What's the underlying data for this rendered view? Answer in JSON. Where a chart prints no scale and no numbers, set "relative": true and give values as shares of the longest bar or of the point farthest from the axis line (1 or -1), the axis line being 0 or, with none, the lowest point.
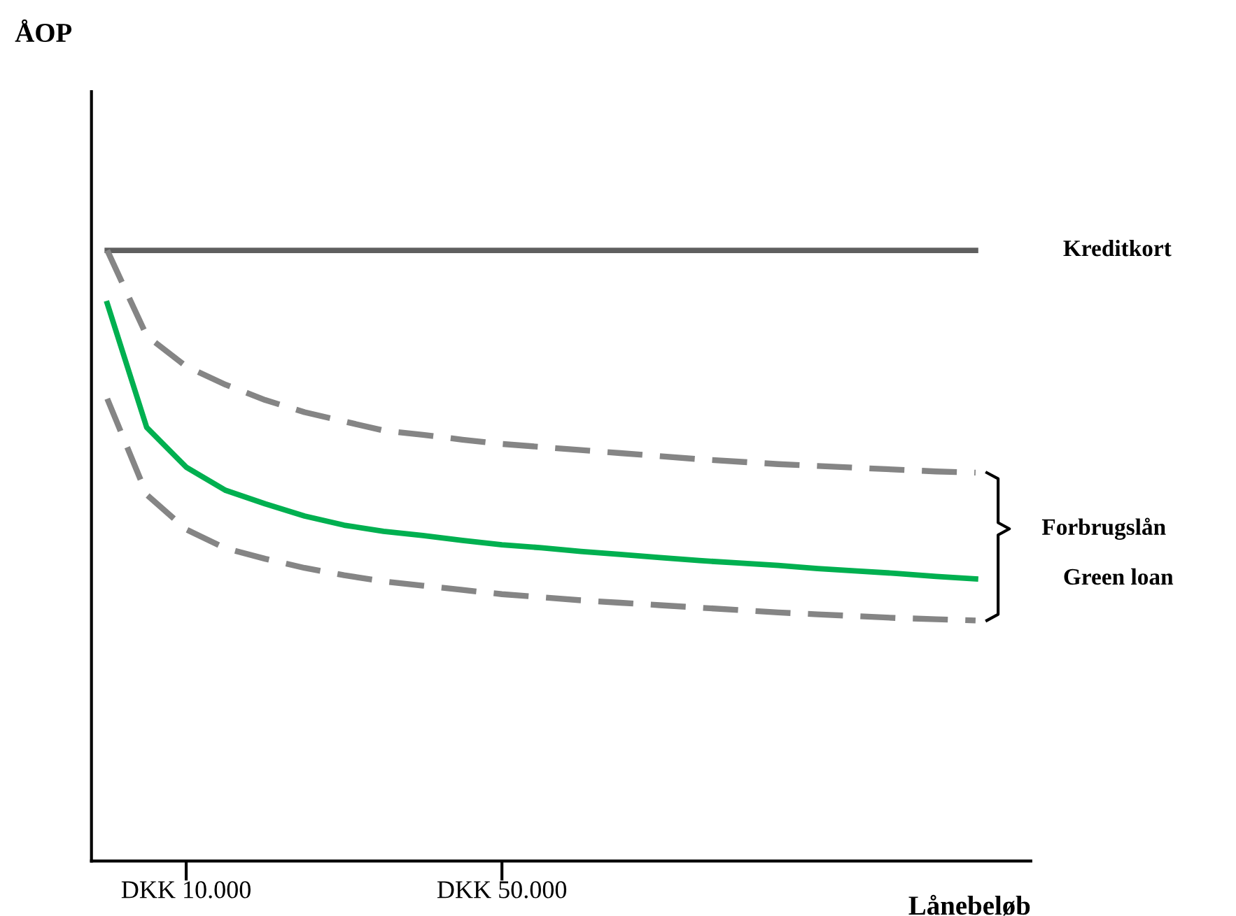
{
  "chart_data": {
    "type": "line",
    "relative": true,
    "xlabel": "Lånebeløb",
    "categories": [
      null,
      null,
      "DKK 10.000",
      null,
      null,
      null,
      null,
      null,
      null,
      null,
      "DKK 50.000",
      null,
      null,
      null,
      null,
      null,
      null,
      null,
      null,
      null,
      null,
      null,
      null
    ],
    "tick_labels": "x",
    "grid": false,
    "legend": false,
    "marker": "none",
    "series": [
      {
        "name": "Kreditkort",
        "color": "#5f5f5f",
        "line_style": "solid",
        "values": [
          1.0,
          1.0,
          1.0,
          1.0,
          1.0,
          1.0,
          1.0,
          1.0,
          1.0,
          1.0,
          1.0,
          1.0,
          1.0,
          1.0,
          1.0,
          1.0,
          1.0,
          1.0,
          1.0,
          1.0,
          1.0,
          1.0,
          1.0
        ]
      },
      {
        "color": "#858585",
        "line_style": "dashed",
        "values": [
          1.0,
          0.86,
          0.81,
          0.78,
          0.755,
          0.735,
          0.72,
          0.705,
          0.698,
          0.69,
          0.683,
          0.678,
          0.673,
          0.668,
          0.663,
          0.658,
          0.654,
          0.65,
          0.647,
          0.644,
          0.641,
          0.638,
          0.636
        ]
      },
      {
        "name": "Green loan",
        "color": "#00b050",
        "line_style": "solid",
        "values": [
          0.913,
          0.71,
          0.645,
          0.607,
          0.585,
          0.565,
          0.55,
          0.54,
          0.533,
          0.525,
          0.518,
          0.513,
          0.507,
          0.502,
          0.497,
          0.492,
          0.488,
          0.484,
          0.479,
          0.475,
          0.471,
          0.466,
          0.462
        ]
      },
      {
        "color": "#858585",
        "line_style": "dashed",
        "values": [
          0.757,
          0.6,
          0.543,
          0.512,
          0.495,
          0.48,
          0.468,
          0.458,
          0.451,
          0.444,
          0.437,
          0.432,
          0.427,
          0.423,
          0.419,
          0.415,
          0.411,
          0.407,
          0.404,
          0.401,
          0.398,
          0.396,
          0.394
        ]
      }
    ],
    "annotations": [
      "ÅOP",
      "Forbrugslån"
    ]
  }
}
